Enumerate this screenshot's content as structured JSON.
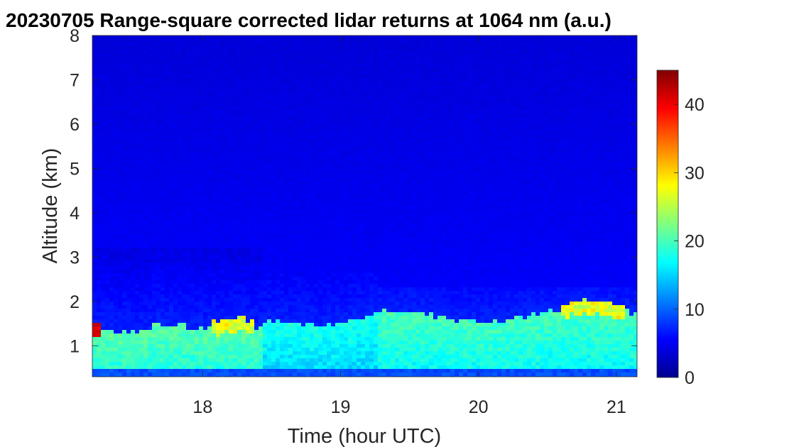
{
  "chart_data": {
    "type": "heatmap",
    "title": "20230705  Range-square corrected lidar returns at 1064 nm (a.u.)",
    "xlabel": "Time (hour UTC)",
    "ylabel": "Altitude (km)",
    "xlim": [
      17.2,
      21.15
    ],
    "ylim": [
      0.3,
      8
    ],
    "xticks": [
      18,
      19,
      20,
      21
    ],
    "yticks": [
      1,
      2,
      3,
      4,
      5,
      6,
      7,
      8
    ],
    "colorbar": {
      "colormap": "jet",
      "lim": [
        0,
        45
      ],
      "ticks": [
        0,
        10,
        20,
        30,
        40
      ]
    },
    "segments": [
      {
        "t_start": 17.2,
        "t_end": 18.43,
        "pbl_top_km": [
          1.35,
          1.3,
          1.35,
          1.5,
          1.45,
          1.4,
          1.45,
          1.4
        ],
        "aerosol_layer_km": [
          2.0,
          3.2
        ],
        "peak_value": 44
      },
      {
        "t_start": 18.43,
        "t_end": 19.27,
        "pbl_top_km": [
          1.6,
          1.55,
          1.5,
          1.45,
          1.5,
          1.6,
          1.7
        ],
        "aerosol_layer_km": [
          1.8,
          2.6
        ],
        "peak_value": 16
      },
      {
        "t_start": 19.27,
        "t_end": 21.15,
        "pbl_top_km": [
          1.8,
          1.75,
          1.7,
          1.6,
          1.55,
          1.6,
          1.7,
          1.8,
          1.85,
          1.8,
          1.75
        ],
        "aerosol_layer_km": [
          1.9,
          2.3
        ],
        "peak_value": 30
      }
    ]
  }
}
